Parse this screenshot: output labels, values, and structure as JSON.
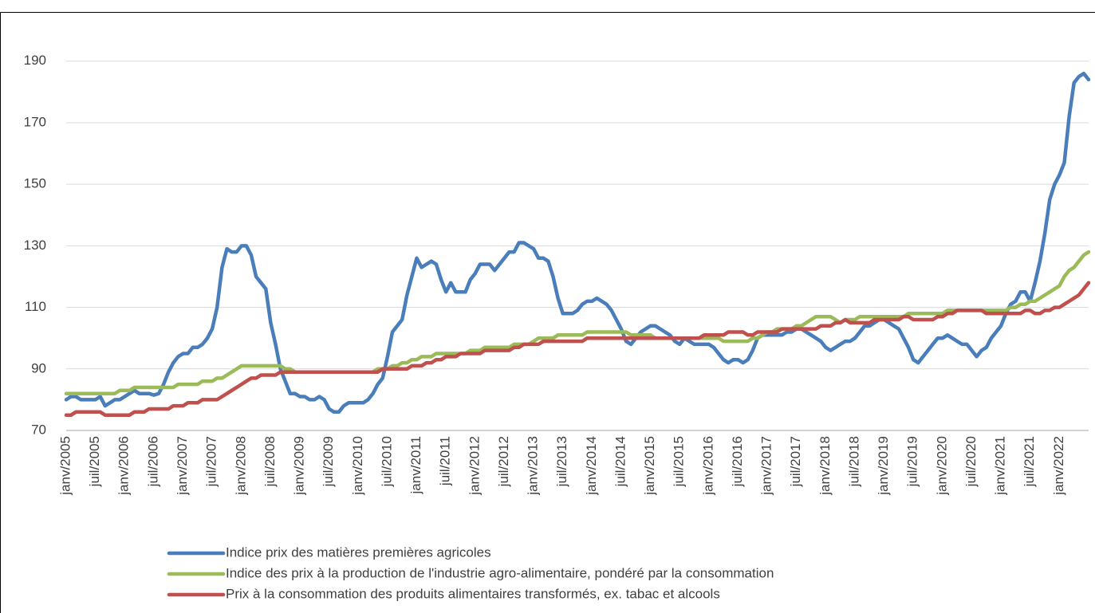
{
  "chart_data": {
    "type": "line",
    "categories": [
      "janv/2005",
      null,
      null,
      null,
      null,
      null,
      "juil/2005",
      null,
      null,
      null,
      null,
      null,
      "janv/2006",
      null,
      null,
      null,
      null,
      null,
      "juil/2006",
      null,
      null,
      null,
      null,
      null,
      "janv/2007",
      null,
      null,
      null,
      null,
      null,
      "juil/2007",
      null,
      null,
      null,
      null,
      null,
      "janv/2008",
      null,
      null,
      null,
      null,
      null,
      "juil/2008",
      null,
      null,
      null,
      null,
      null,
      "janv/2009",
      null,
      null,
      null,
      null,
      null,
      "juil/2009",
      null,
      null,
      null,
      null,
      null,
      "janv/2010",
      null,
      null,
      null,
      null,
      null,
      "juil/2010",
      null,
      null,
      null,
      null,
      null,
      "janv/2011",
      null,
      null,
      null,
      null,
      null,
      "juil/2011",
      null,
      null,
      null,
      null,
      null,
      "janv/2012",
      null,
      null,
      null,
      null,
      null,
      "juil/2012",
      null,
      null,
      null,
      null,
      null,
      "janv/2013",
      null,
      null,
      null,
      null,
      null,
      "juil/2013",
      null,
      null,
      null,
      null,
      null,
      "janv/2014",
      null,
      null,
      null,
      null,
      null,
      "juil/2014",
      null,
      null,
      null,
      null,
      null,
      "janv/2015",
      null,
      null,
      null,
      null,
      null,
      "juil/2015",
      null,
      null,
      null,
      null,
      null,
      "janv/2016",
      null,
      null,
      null,
      null,
      null,
      "juil/2016",
      null,
      null,
      null,
      null,
      null,
      "janv/2017",
      null,
      null,
      null,
      null,
      null,
      "juil/2017",
      null,
      null,
      null,
      null,
      null,
      "janv/2018",
      null,
      null,
      null,
      null,
      null,
      "juil/2018",
      null,
      null,
      null,
      null,
      null,
      "janv/2019",
      null,
      null,
      null,
      null,
      null,
      "juil/2019",
      null,
      null,
      null,
      null,
      null,
      "janv/2020",
      null,
      null,
      null,
      null,
      null,
      "juil/2020",
      null,
      null,
      null,
      null,
      null,
      "janv/2021",
      null,
      null,
      null,
      null,
      null,
      "juil/2021",
      null,
      null,
      null,
      null,
      null,
      "janv/2022",
      null,
      null,
      null,
      null,
      null,
      null
    ],
    "series": [
      {
        "name": "Indice prix des matières premières agricoles",
        "color": "#4a7ebb",
        "values": [
          80,
          81,
          81,
          80,
          80,
          80,
          80,
          81,
          78,
          79,
          80,
          80,
          81,
          82,
          83,
          82,
          82,
          82,
          81.5,
          82,
          85,
          89,
          92,
          94,
          95,
          95,
          97,
          97,
          98,
          100,
          103,
          110,
          123,
          129,
          128,
          128,
          130,
          130,
          127,
          120,
          118,
          116,
          105,
          98,
          90,
          86,
          82,
          82,
          81,
          81,
          80,
          80,
          81,
          80,
          77,
          76,
          76,
          78,
          79,
          79,
          79,
          79,
          80,
          82,
          85,
          87,
          94,
          102,
          104,
          106,
          114,
          120,
          126,
          123,
          124,
          125,
          124,
          119,
          115,
          118,
          115,
          115,
          115,
          119,
          121,
          124,
          124,
          124,
          122,
          124,
          126,
          128,
          128,
          131,
          131,
          130,
          129,
          126,
          126,
          125,
          120,
          113,
          108,
          108,
          108,
          109,
          111,
          112,
          112,
          113,
          112,
          111,
          109,
          106,
          103,
          99,
          98,
          100,
          102,
          103,
          104,
          104,
          103,
          102,
          101,
          99,
          98,
          100,
          99,
          98,
          98,
          98,
          98,
          97,
          95,
          93,
          92,
          93,
          93,
          92,
          93,
          96,
          100,
          101,
          101,
          101,
          101,
          101,
          102,
          102,
          103,
          103,
          102,
          101,
          100,
          99,
          97,
          96,
          97,
          98,
          99,
          99,
          100,
          102,
          104,
          104,
          105,
          106,
          106,
          105,
          104,
          103,
          100,
          97,
          93,
          92,
          94,
          96,
          98,
          100,
          100,
          101,
          100,
          99,
          98,
          98,
          96,
          94,
          96,
          97,
          100,
          102,
          104,
          108,
          111,
          112,
          115,
          115,
          112,
          118,
          125,
          134,
          145,
          150,
          153,
          157,
          172,
          183,
          185,
          186,
          184
        ]
      },
      {
        "name": "Indice des prix à la production de l'industrie agro-alimentaire, pondéré par la consommation",
        "color": "#9bbb59",
        "values": [
          82,
          82,
          82,
          82,
          82,
          82,
          82,
          82,
          82,
          82,
          82,
          83,
          83,
          83,
          84,
          84,
          84,
          84,
          84,
          84,
          84,
          84,
          84,
          85,
          85,
          85,
          85,
          85,
          86,
          86,
          86,
          87,
          87,
          88,
          89,
          90,
          91,
          91,
          91,
          91,
          91,
          91,
          91,
          91,
          91,
          90,
          90,
          89,
          89,
          89,
          89,
          89,
          89,
          89,
          89,
          89,
          89,
          89,
          89,
          89,
          89,
          89,
          89,
          89,
          90,
          90,
          90,
          91,
          91,
          92,
          92,
          93,
          93,
          94,
          94,
          94,
          95,
          95,
          95,
          95,
          95,
          95,
          95,
          96,
          96,
          96,
          97,
          97,
          97,
          97,
          97,
          97,
          98,
          98,
          98,
          98,
          99,
          100,
          100,
          100,
          100,
          101,
          101,
          101,
          101,
          101,
          101,
          102,
          102,
          102,
          102,
          102,
          102,
          102,
          102,
          102,
          101,
          101,
          101,
          101,
          101,
          100,
          100,
          100,
          100,
          100,
          100,
          100,
          100,
          100,
          100,
          100,
          100,
          100,
          100,
          99,
          99,
          99,
          99,
          99,
          99,
          100,
          100,
          101,
          102,
          102,
          103,
          103,
          103,
          103,
          104,
          104,
          105,
          106,
          107,
          107,
          107,
          107,
          106,
          105,
          106,
          106,
          106,
          107,
          107,
          107,
          107,
          107,
          107,
          107,
          107,
          107,
          107,
          108,
          108,
          108,
          108,
          108,
          108,
          108,
          108,
          109,
          109,
          109,
          109,
          109,
          109,
          109,
          109,
          109,
          109,
          109,
          109,
          109,
          110,
          110,
          111,
          111,
          112,
          112,
          113,
          114,
          115,
          116,
          117,
          120,
          122,
          123,
          125,
          127,
          128
        ]
      },
      {
        "name": "Prix à la consommation des produits alimentaires transformés, ex. tabac et alcools",
        "color": "#c0504d",
        "values": [
          75,
          75,
          76,
          76,
          76,
          76,
          76,
          76,
          75,
          75,
          75,
          75,
          75,
          75,
          76,
          76,
          76,
          77,
          77,
          77,
          77,
          77,
          78,
          78,
          78,
          79,
          79,
          79,
          80,
          80,
          80,
          80,
          81,
          82,
          83,
          84,
          85,
          86,
          87,
          87,
          88,
          88,
          88,
          88,
          89,
          89,
          89,
          89,
          89,
          89,
          89,
          89,
          89,
          89,
          89,
          89,
          89,
          89,
          89,
          89,
          89,
          89,
          89,
          89,
          89,
          90,
          90,
          90,
          90,
          90,
          90,
          91,
          91,
          91,
          92,
          92,
          93,
          93,
          94,
          94,
          94,
          95,
          95,
          95,
          95,
          95,
          96,
          96,
          96,
          96,
          96,
          96,
          97,
          97,
          98,
          98,
          98,
          98,
          99,
          99,
          99,
          99,
          99,
          99,
          99,
          99,
          99,
          100,
          100,
          100,
          100,
          100,
          100,
          100,
          100,
          100,
          100,
          100,
          100,
          100,
          100,
          100,
          100,
          100,
          100,
          100,
          100,
          100,
          100,
          100,
          100,
          101,
          101,
          101,
          101,
          101,
          102,
          102,
          102,
          102,
          101,
          101,
          102,
          102,
          102,
          102,
          102,
          103,
          103,
          103,
          103,
          103,
          103,
          103,
          103,
          104,
          104,
          104,
          105,
          105,
          106,
          105,
          105,
          105,
          105,
          105,
          106,
          106,
          106,
          106,
          106,
          106,
          107,
          107,
          106,
          106,
          106,
          106,
          106,
          107,
          107,
          108,
          108,
          109,
          109,
          109,
          109,
          109,
          109,
          108,
          108,
          108,
          108,
          108,
          108,
          108,
          108,
          109,
          109,
          108,
          108,
          109,
          109,
          110,
          110,
          111,
          112,
          113,
          114,
          116,
          118
        ]
      }
    ],
    "ylim": [
      70,
      206
    ],
    "yticks": [
      70,
      90,
      110,
      130,
      150,
      170,
      190
    ],
    "grid": true
  }
}
